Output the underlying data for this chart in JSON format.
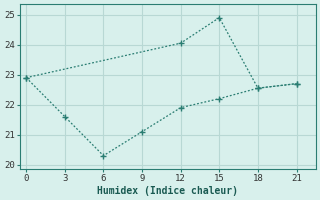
{
  "line1_x": [
    0,
    12,
    15,
    18,
    21
  ],
  "line1_y": [
    22.9,
    24.05,
    24.9,
    22.55,
    22.7
  ],
  "line2_x": [
    0,
    3,
    6,
    9,
    12,
    15,
    18,
    21
  ],
  "line2_y": [
    22.9,
    21.6,
    20.3,
    21.1,
    21.9,
    22.2,
    22.55,
    22.7
  ],
  "color": "#2a7d72",
  "bg_color": "#d8f0ec",
  "grid_color": "#b8d8d4",
  "xlabel": "Humidex (Indice chaleur)",
  "xlim": [
    -0.5,
    22.5
  ],
  "ylim": [
    19.85,
    25.35
  ],
  "xticks": [
    0,
    3,
    6,
    9,
    12,
    15,
    18,
    21
  ],
  "yticks": [
    20,
    21,
    22,
    23,
    24,
    25
  ],
  "tick_fontsize": 6.5,
  "xlabel_fontsize": 7.0
}
